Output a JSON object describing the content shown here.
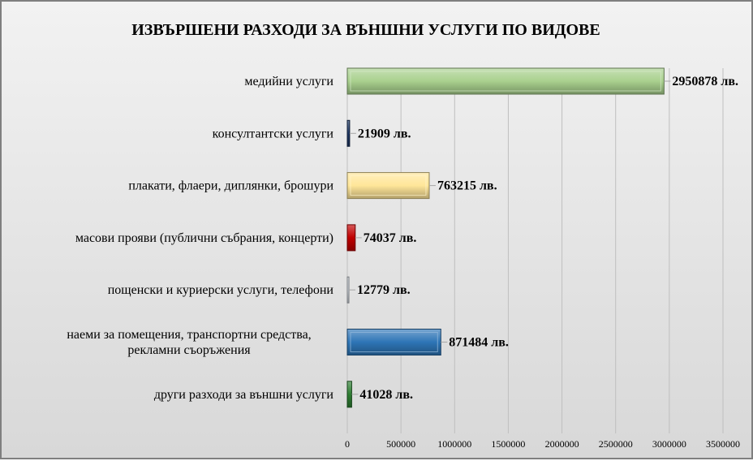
{
  "chart_data": {
    "type": "bar",
    "orientation": "horizontal",
    "title": "ИЗВЪРШЕНИ РАЗХОДИ ЗА ВЪНШНИ УСЛУГИ ПО ВИДОВЕ",
    "xlabel": "",
    "ylabel": "",
    "xlim": [
      0,
      3500000
    ],
    "ticks": [
      "0",
      "500000",
      "1000000",
      "1500000",
      "2000000",
      "2500000",
      "3000000",
      "3500000"
    ],
    "tick_values": [
      0,
      500000,
      1000000,
      1500000,
      2000000,
      2500000,
      3000000,
      3500000
    ],
    "grid": true,
    "legend": "none",
    "categories": [
      "медийни услуги",
      "консултантски услуги",
      "плакати, флаери, диплянки, брошури",
      "масови прояви (публични събрания, концерти)",
      "пощенски и куриерски услуги, телефони",
      "наеми за помещения, транспортни средства, рекламни съоръжения",
      "други разходи за външни услуги"
    ],
    "category_lines": [
      [
        "медийни услуги"
      ],
      [
        "консултантски услуги"
      ],
      [
        "плакати, флаери, диплянки, брошури"
      ],
      [
        "масови прояви (публични събрания, концерти)"
      ],
      [
        "пощенски и куриерски услуги, телефони"
      ],
      [
        "наеми за помещения, транспортни средства,",
        "рекламни съоръжения"
      ],
      [
        "други разходи за външни услуги"
      ]
    ],
    "values": [
      2950878,
      21909,
      763215,
      74037,
      12779,
      871484,
      41028
    ],
    "value_labels": [
      "2950878 лв.",
      "21909 лв.",
      "763215 лв.",
      "74037 лв.",
      "12779 лв.",
      "871484 лв.",
      "41028 лв."
    ],
    "colors": [
      "#a9d18e",
      "#1f3864",
      "#ffe699",
      "#c00000",
      "#d6dce4",
      "#2e75b6",
      "#2e7d32"
    ]
  }
}
